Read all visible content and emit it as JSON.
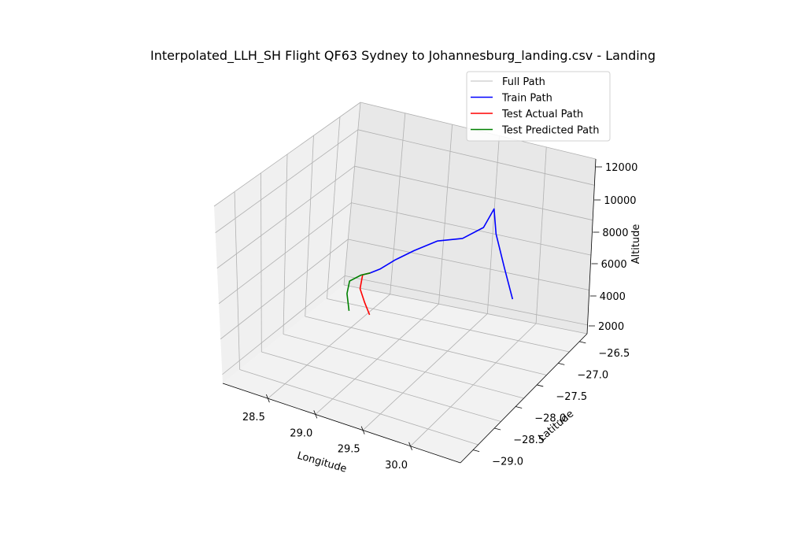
{
  "chart_data": {
    "type": "line",
    "projection": "3d",
    "title": "Interpolated_LLH_SH Flight QF63 Sydney to Johannesburg_landing.csv - Landing",
    "xlabel": "Longitude",
    "ylabel": "Latitude",
    "zlabel": "Altitude",
    "x_ticks": [
      "28.5",
      "29.0",
      "29.5",
      "30.0"
    ],
    "y_ticks": [
      "−29.0",
      "−28.5",
      "−28.0",
      "−27.5",
      "−27.0",
      "−26.5"
    ],
    "z_ticks": [
      "2000",
      "4000",
      "6000",
      "8000",
      "10000",
      "12000"
    ],
    "grid": true,
    "legend_position": "top-right",
    "legend": [
      {
        "label": "Full Path",
        "color": "#d3d3d3"
      },
      {
        "label": "Train Path",
        "color": "#0000ff"
      },
      {
        "label": "Test Actual Path",
        "color": "#ff0000"
      },
      {
        "label": "Test Predicted Path",
        "color": "#008000"
      }
    ],
    "series": [
      {
        "name": "Train Path",
        "color": "#0000ff",
        "points": [
          {
            "lon": 30.45,
            "lat": -27.55,
            "alt": 6600
          },
          {
            "lon": 30.25,
            "lat": -27.35,
            "alt": 7600
          },
          {
            "lon": 30.05,
            "lat": -27.15,
            "alt": 8700
          },
          {
            "lon": 29.95,
            "lat": -27.0,
            "alt": 9600
          },
          {
            "lon": 29.85,
            "lat": -27.05,
            "alt": 8500
          },
          {
            "lon": 29.65,
            "lat": -27.15,
            "alt": 7800
          },
          {
            "lon": 29.4,
            "lat": -27.25,
            "alt": 7500
          },
          {
            "lon": 29.2,
            "lat": -27.4,
            "alt": 7000
          },
          {
            "lon": 29.05,
            "lat": -27.55,
            "alt": 6600
          },
          {
            "lon": 28.95,
            "lat": -27.7,
            "alt": 6300
          },
          {
            "lon": 28.88,
            "lat": -27.8,
            "alt": 6200
          }
        ]
      },
      {
        "name": "Test Actual Path",
        "color": "#ff0000",
        "points": [
          {
            "lon": 28.88,
            "lat": -27.8,
            "alt": 6200
          },
          {
            "lon": 28.82,
            "lat": -27.86,
            "alt": 6150
          },
          {
            "lon": 28.85,
            "lat": -27.98,
            "alt": 5700
          },
          {
            "lon": 28.95,
            "lat": -28.07,
            "alt": 5300
          },
          {
            "lon": 29.05,
            "lat": -28.15,
            "alt": 4950
          }
        ]
      },
      {
        "name": "Test Predicted Path",
        "color": "#008000",
        "points": [
          {
            "lon": 28.88,
            "lat": -27.8,
            "alt": 6200
          },
          {
            "lon": 28.8,
            "lat": -27.86,
            "alt": 6100
          },
          {
            "lon": 28.72,
            "lat": -27.97,
            "alt": 5900
          },
          {
            "lon": 28.73,
            "lat": -28.05,
            "alt": 5400
          },
          {
            "lon": 28.8,
            "lat": -28.14,
            "alt": 4750
          }
        ]
      }
    ]
  }
}
